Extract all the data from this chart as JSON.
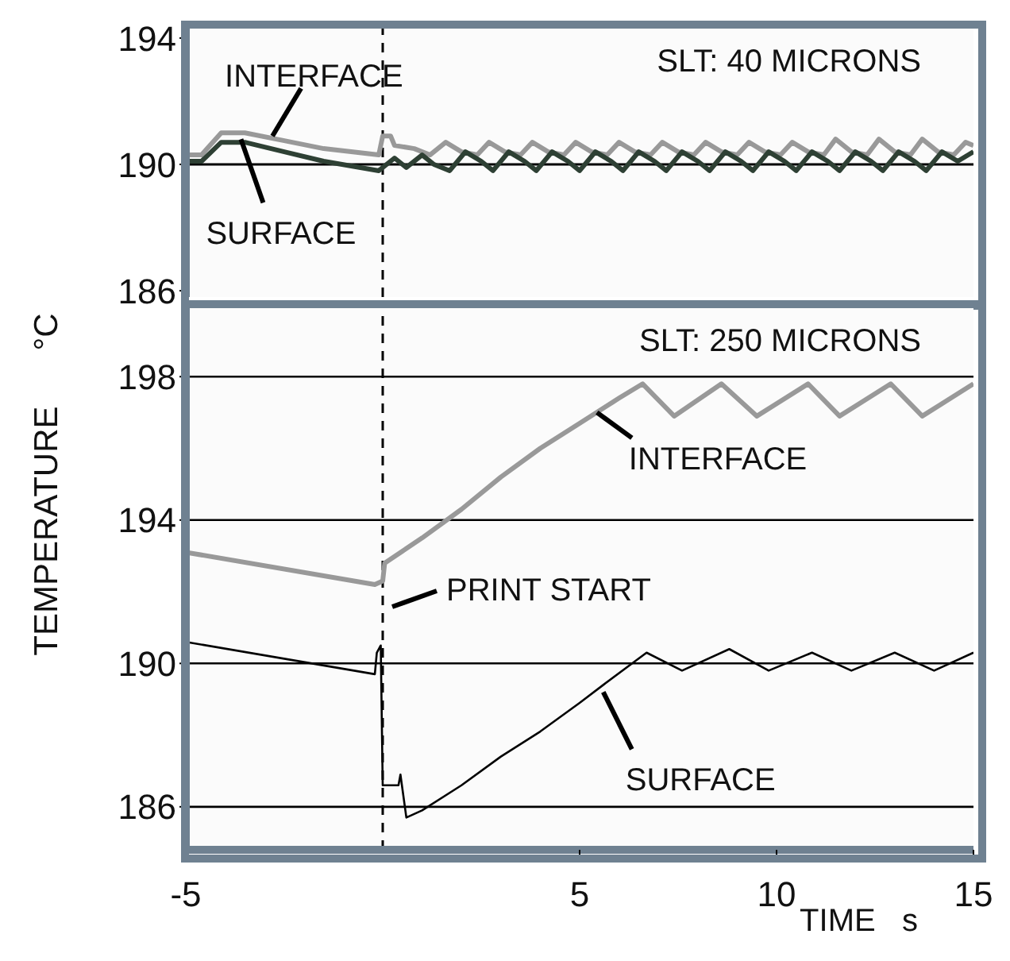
{
  "chart_data": [
    {
      "type": "line",
      "xlim": [
        -5,
        15
      ],
      "ylim": [
        185.8,
        194.4
      ],
      "yticks": [
        186,
        190,
        194
      ],
      "marker": "none",
      "line_style": "solid",
      "tick_labels": "y",
      "series": [
        {
          "name": null,
          "color": "#999999",
          "x": [
            -5,
            -4.6,
            -4.1,
            -3.5,
            -2.5,
            -1.5,
            -0.1,
            0,
            0.2,
            0.3,
            0.8,
            1.2,
            1.6,
            2.0,
            2.4,
            2.7,
            3.1,
            3.5,
            3.8,
            4.2,
            4.6,
            4.9,
            5.3,
            5.7,
            6.0,
            6.4,
            6.8,
            7.1,
            7.5,
            7.9,
            8.2,
            8.6,
            9.0,
            9.3,
            9.7,
            10.1,
            10.4,
            10.8,
            11.2,
            11.5,
            11.9,
            12.3,
            12.6,
            13.0,
            13.4,
            13.7,
            14.1,
            14.5,
            14.8,
            15
          ],
          "values": [
            190.3,
            190.3,
            191.0,
            191.0,
            190.75,
            190.5,
            190.3,
            190.9,
            190.9,
            190.6,
            190.5,
            190.3,
            190.7,
            190.4,
            190.3,
            190.7,
            190.4,
            190.3,
            190.7,
            190.4,
            190.3,
            190.7,
            190.4,
            190.3,
            190.7,
            190.4,
            190.3,
            190.7,
            190.4,
            190.3,
            190.7,
            190.4,
            190.3,
            190.7,
            190.4,
            190.3,
            190.7,
            190.4,
            190.3,
            190.8,
            190.4,
            190.3,
            190.8,
            190.4,
            190.3,
            190.8,
            190.4,
            190.3,
            190.7,
            190.6
          ]
        },
        {
          "name": null,
          "color": "#2e4034",
          "x": [
            -5,
            -4.6,
            -4.1,
            -3.5,
            -2.5,
            -1.5,
            -0.1,
            0.3,
            0.6,
            1.0,
            1.3,
            1.7,
            2.1,
            2.5,
            2.8,
            3.2,
            3.6,
            3.9,
            4.3,
            4.7,
            5.0,
            5.4,
            5.8,
            6.1,
            6.5,
            6.9,
            7.2,
            7.6,
            8.0,
            8.3,
            8.7,
            9.1,
            9.4,
            9.8,
            10.2,
            10.5,
            10.9,
            11.3,
            11.6,
            12.0,
            12.4,
            12.7,
            13.1,
            13.5,
            13.8,
            14.2,
            14.6,
            15
          ],
          "values": [
            190.1,
            190.1,
            190.7,
            190.7,
            190.4,
            190.1,
            189.8,
            190.2,
            189.9,
            190.3,
            190.0,
            189.8,
            190.4,
            190.1,
            189.8,
            190.4,
            190.1,
            189.8,
            190.4,
            190.1,
            189.8,
            190.4,
            190.1,
            189.8,
            190.4,
            190.1,
            189.8,
            190.4,
            190.1,
            189.8,
            190.4,
            190.1,
            189.8,
            190.4,
            190.1,
            189.8,
            190.4,
            190.1,
            189.8,
            190.4,
            190.1,
            189.8,
            190.4,
            190.1,
            189.8,
            190.4,
            190.1,
            190.4
          ]
        }
      ],
      "ref_lines": [
        {
          "axis": "x",
          "value": 0,
          "label": null,
          "color": "#000000",
          "line_style": "dashed"
        },
        {
          "axis": "y",
          "value": 190,
          "label": null,
          "color": "#000000",
          "line_style": "solid"
        }
      ],
      "annotations": [
        "SLT: 40 MICRONS",
        {
          "text": "INTERFACE",
          "x": -2.8,
          "y": 190.9
        },
        {
          "text": "SURFACE",
          "x": -3.6,
          "y": 190.8
        }
      ]
    },
    {
      "type": "line",
      "xlim": [
        -5,
        15
      ],
      "ylim": [
        184.8,
        200
      ],
      "xticks": [
        -5,
        5,
        10,
        15
      ],
      "yticks": [
        186,
        190,
        194,
        198
      ],
      "grid": "y",
      "marker": "none",
      "line_style": "solid",
      "xlabel": "TIME   s",
      "ylabel": "TEMPERATURE      °C",
      "series": [
        {
          "name": null,
          "color": "#999999",
          "x": [
            -5,
            -0.2,
            0,
            0.05,
            1,
            2,
            3,
            4,
            5,
            6,
            6.6,
            7.4,
            8.6,
            9.5,
            10.8,
            11.6,
            12.9,
            13.7,
            15
          ],
          "values": [
            193.1,
            192.2,
            192.3,
            192.8,
            193.5,
            194.3,
            195.2,
            196.0,
            196.7,
            197.4,
            197.8,
            196.9,
            197.8,
            196.9,
            197.8,
            196.9,
            197.8,
            196.9,
            197.8
          ]
        },
        {
          "name": null,
          "color": "#000000",
          "x": [
            -5,
            -0.2,
            -0.15,
            -0.05,
            0,
            0.4,
            0.45,
            0.6,
            1,
            2,
            3,
            4,
            5,
            5.6,
            6.7,
            7.6,
            8.8,
            9.8,
            10.9,
            11.9,
            13.0,
            14.0,
            15
          ],
          "values": [
            190.6,
            189.7,
            190.3,
            190.5,
            186.6,
            186.6,
            186.9,
            185.7,
            185.9,
            186.6,
            187.4,
            188.1,
            188.9,
            189.4,
            190.3,
            189.8,
            190.4,
            189.8,
            190.3,
            189.8,
            190.3,
            189.8,
            190.3
          ]
        }
      ],
      "ref_lines": [
        {
          "axis": "x",
          "value": 0,
          "label": "PRINT START",
          "color": "#000000",
          "line_style": "dashed"
        }
      ],
      "annotations": [
        "SLT: 250 MICRONS",
        {
          "text": "INTERFACE",
          "x": 5.44,
          "y": 197.0
        },
        {
          "text": "SURFACE",
          "x": 5.6,
          "y": 189.2
        }
      ]
    }
  ]
}
